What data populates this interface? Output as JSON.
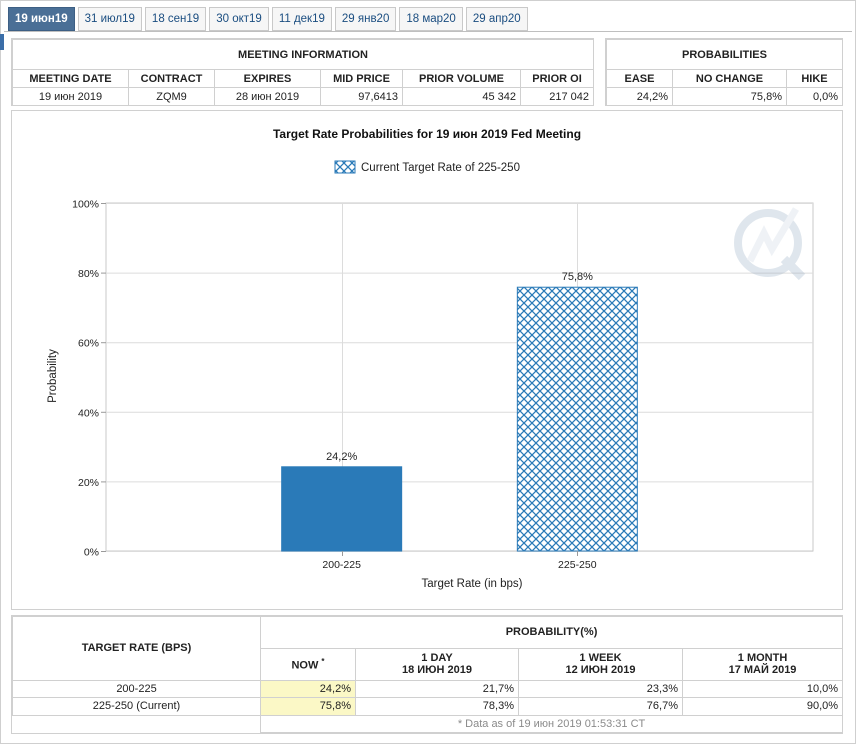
{
  "tabs": [
    {
      "label": "19 июн19",
      "active": true
    },
    {
      "label": "31 июл19",
      "active": false
    },
    {
      "label": "18 сен19",
      "active": false
    },
    {
      "label": "30 окт19",
      "active": false
    },
    {
      "label": "11 дек19",
      "active": false
    },
    {
      "label": "29 янв20",
      "active": false
    },
    {
      "label": "18 мар20",
      "active": false
    },
    {
      "label": "29 апр20",
      "active": false
    }
  ],
  "meeting_info": {
    "title": "MEETING INFORMATION",
    "headers": [
      "MEETING DATE",
      "CONTRACT",
      "EXPIRES",
      "MID PRICE",
      "PRIOR VOLUME",
      "PRIOR OI"
    ],
    "row": [
      "19 июн 2019",
      "ZQM9",
      "28 июн 2019",
      "97,6413",
      "45 342",
      "217 042"
    ]
  },
  "probabilities": {
    "title": "PROBABILITIES",
    "headers": [
      "EASE",
      "NO CHANGE",
      "HIKE"
    ],
    "row": [
      "24,2%",
      "75,8%",
      "0,0%"
    ]
  },
  "chart_data": {
    "type": "bar",
    "title": "Target Rate Probabilities for 19 июн 2019 Fed Meeting",
    "legend": "Current Target Rate of 225-250",
    "legend_position": "top-center",
    "xlabel": "Target Rate (in bps)",
    "ylabel": "Probability",
    "categories": [
      "200-225",
      "225-250"
    ],
    "values": [
      24.2,
      75.8
    ],
    "value_labels": [
      "24,2%",
      "75,8%"
    ],
    "hatched": [
      false,
      true
    ],
    "ylim": [
      0,
      100
    ],
    "yticks": [
      0,
      20,
      40,
      60,
      80,
      100
    ],
    "ytick_labels": [
      "0%",
      "20%",
      "40%",
      "60%",
      "80%",
      "100%"
    ],
    "grid": true,
    "colors": {
      "bar": "#2a7ab8",
      "hatch_bg": "#ffffff",
      "hatch_line": "#2a7ab8"
    }
  },
  "history": {
    "target_rate_header": "TARGET RATE (BPS)",
    "probability_header": "PROBABILITY(%)",
    "cols": [
      {
        "line1": "NOW",
        "line2": ""
      },
      {
        "line1": "1 DAY",
        "line2": "18 ИЮН 2019"
      },
      {
        "line1": "1 WEEK",
        "line2": "12 ИЮН 2019"
      },
      {
        "line1": "1 MONTH",
        "line2": "17 МАЙ 2019"
      }
    ],
    "now_marker": "*",
    "rows": [
      {
        "rate": "200-225",
        "values": [
          "24,2%",
          "21,7%",
          "23,3%",
          "10,0%"
        ]
      },
      {
        "rate": "225-250 (Current)",
        "values": [
          "75,8%",
          "78,3%",
          "76,7%",
          "90,0%"
        ]
      }
    ],
    "footnote": "* Data as of 19 июн 2019 01:53:31 CT"
  }
}
